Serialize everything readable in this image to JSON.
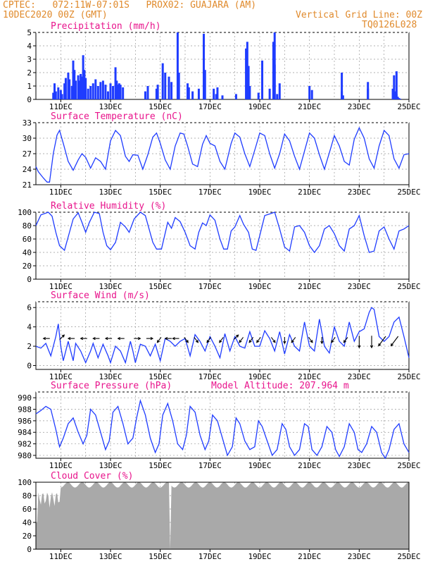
{
  "header": {
    "line1": "CPTEC:   072:11W-07:01S   PROX02: GUAJARA (AM)",
    "line2_left": "10DEC2020 00Z (GMT)",
    "line2_right": "Vertical Grid Line: 00Z",
    "line3_right": "TQ0126L028"
  },
  "x_tick_labels": [
    "11DEC",
    "13DEC",
    "15DEC",
    "17DEC",
    "19DEC",
    "21DEC",
    "23DEC",
    "25DEC"
  ],
  "colors": {
    "series": "#1f3cff",
    "title": "#e8148c",
    "header": "#e08a2c",
    "cloud": "#a9a9a9",
    "arrow": "#000000"
  },
  "panels": {
    "precip": {
      "title": "Precipitation (mm/h)",
      "yticks": [
        "5",
        "4",
        "3",
        "2",
        "1",
        "0"
      ]
    },
    "temp": {
      "title": "Surface Temperature (nC)",
      "yticks": [
        "33",
        "30",
        "27",
        "24",
        "21"
      ]
    },
    "rh": {
      "title": "Relative Humidity (%)",
      "yticks": [
        "100",
        "80",
        "60",
        "40",
        "20",
        "0"
      ]
    },
    "wind": {
      "title": "Surface Wind (m/s)",
      "yticks": [
        "6",
        "4",
        "2",
        "0"
      ]
    },
    "pres": {
      "title": "Surface Pressure (hPa)",
      "subtitle": "Model Altitude: 207.964 m",
      "yticks": [
        "990",
        "988",
        "986",
        "984",
        "982",
        "980"
      ]
    },
    "cloud": {
      "title": "Cloud Cover (%)",
      "yticks": [
        "100",
        "80",
        "60",
        "40",
        "20",
        "0"
      ]
    }
  },
  "chart_data": [
    {
      "type": "bar",
      "title": "Precipitation (mm/h)",
      "ylabel": "mm/h",
      "ylim": [
        0,
        5
      ],
      "x_unit": "days since 10DEC2020 00Z",
      "x": [
        0.7,
        0.75,
        0.8,
        0.9,
        1.0,
        1.05,
        1.15,
        1.2,
        1.3,
        1.35,
        1.45,
        1.5,
        1.55,
        1.6,
        1.7,
        1.75,
        1.8,
        1.85,
        1.9,
        1.95,
        2.0,
        2.1,
        2.2,
        2.3,
        2.4,
        2.5,
        2.6,
        2.7,
        2.8,
        2.9,
        3.0,
        3.1,
        3.2,
        3.25,
        3.3,
        3.35,
        3.4,
        3.5,
        4.4,
        4.5,
        4.85,
        4.9,
        5.1,
        5.2,
        5.35,
        5.45,
        5.7,
        5.75,
        6.1,
        6.15,
        6.3,
        6.55,
        6.75,
        6.8,
        7.15,
        7.25,
        7.3,
        7.5,
        8.05,
        8.6,
        8.95,
        9.1,
        9.4,
        9.6,
        9.7,
        11.0,
        11.1,
        12.3,
        12.35,
        13.35,
        14.35,
        14.45,
        14.5,
        14.55,
        14.6,
        14.65
      ],
      "values": [
        0.5,
        1.2,
        0.6,
        0.9,
        0.7,
        0.4,
        1.2,
        1.6,
        2.0,
        1.5,
        1.0,
        2.9,
        2.2,
        1.4,
        1.8,
        1.4,
        1.9,
        1.7,
        3.3,
        2.2,
        1.6,
        0.8,
        1.0,
        1.2,
        1.5,
        1.0,
        1.3,
        1.4,
        1.1,
        0.6,
        1.2,
        1.0,
        2.4,
        1.4,
        1.1,
        1.2,
        1.1,
        0.9,
        0.6,
        1.0,
        0.8,
        1.1,
        2.7,
        2.0,
        1.7,
        1.3,
        5.0,
        2.0,
        1.2,
        0.9,
        0.6,
        0.8,
        4.9,
        2.2,
        0.8,
        0.4,
        0.9,
        0.3,
        0.4,
        1.0,
        0.5,
        2.9,
        0.8,
        2.6,
        0.4,
        1.0,
        0.7,
        0.6,
        0.3,
        1.3,
        0.8,
        0.6,
        0.4,
        0.2,
        0.1,
        0.05
      ],
      "extra_x": [
        8.45,
        8.5,
        8.55,
        9.55,
        9.6,
        9.8,
        12.3,
        13.35,
        14.4,
        14.5
      ],
      "extra_values": [
        3.8,
        4.3,
        2.5,
        4.3,
        5.0,
        1.2,
        2.0,
        0.8,
        1.8,
        2.1
      ]
    },
    {
      "type": "line",
      "title": "Surface Temperature (nC)",
      "ylim": [
        21,
        33
      ],
      "x_unit": "days since 10DEC2020 00Z",
      "series": [
        {
          "x": [
            0,
            0.1,
            0.3,
            0.45,
            0.55,
            0.7,
            0.85,
            0.95,
            1.1,
            1.3,
            1.5,
            1.7,
            1.85,
            2.0,
            2.2,
            2.4,
            2.6,
            2.8,
            3.0,
            3.2,
            3.4,
            3.6,
            3.75,
            3.9,
            4.1,
            4.3,
            4.5,
            4.7,
            4.85,
            5.0,
            5.2,
            5.4,
            5.6,
            5.8,
            5.95,
            6.1,
            6.3,
            6.5,
            6.7,
            6.85,
            7.0,
            7.2,
            7.4,
            7.6,
            7.85,
            8.0,
            8.2,
            8.4,
            8.6,
            8.85,
            9.0,
            9.2,
            9.4,
            9.6,
            9.8,
            10.0,
            10.2,
            10.4,
            10.6,
            10.8,
            11.0,
            11.2,
            11.4,
            11.6,
            11.85,
            12.0,
            12.2,
            12.4,
            12.6,
            12.8,
            13.0,
            13.2,
            13.4,
            13.6,
            13.8,
            14.0,
            14.2,
            14.4,
            14.6,
            14.8,
            15.0
          ],
          "values": [
            24.5,
            23.5,
            22.3,
            21.5,
            21.5,
            27.0,
            30.6,
            31.5,
            29.0,
            25.5,
            23.8,
            25.8,
            27.0,
            26.3,
            24.2,
            26.2,
            25.5,
            24.0,
            29.5,
            31.5,
            30.5,
            26.5,
            25.5,
            26.8,
            26.7,
            24.0,
            26.8,
            30.2,
            31.0,
            29.0,
            25.8,
            24.0,
            28.5,
            31.0,
            30.8,
            28.5,
            25.0,
            24.5,
            28.8,
            30.5,
            29.0,
            28.5,
            25.5,
            24.0,
            29.0,
            31.0,
            30.2,
            27.0,
            24.5,
            28.5,
            31.0,
            30.5,
            27.0,
            24.2,
            27.0,
            30.8,
            29.5,
            26.5,
            24.0,
            27.5,
            31.0,
            30.0,
            26.8,
            24.0,
            28.0,
            30.5,
            28.5,
            25.5,
            24.8,
            29.8,
            32.0,
            30.0,
            26.0,
            24.2,
            28.5,
            31.5,
            30.5,
            26.0,
            24.2,
            26.8,
            27.0
          ]
        }
      ]
    },
    {
      "type": "line",
      "title": "Relative Humidity (%)",
      "ylim": [
        0,
        100
      ],
      "x_unit": "days since 10DEC2020 00Z",
      "series": [
        {
          "x": [
            0,
            0.2,
            0.5,
            0.65,
            0.8,
            0.95,
            1.15,
            1.35,
            1.5,
            1.7,
            1.85,
            2.0,
            2.15,
            2.35,
            2.55,
            2.7,
            2.85,
            3.0,
            3.2,
            3.4,
            3.6,
            3.75,
            3.95,
            4.2,
            4.4,
            4.55,
            4.7,
            4.85,
            5.05,
            5.3,
            5.45,
            5.6,
            5.8,
            6.0,
            6.2,
            6.4,
            6.55,
            6.7,
            6.85,
            7.0,
            7.2,
            7.4,
            7.55,
            7.7,
            7.85,
            8.0,
            8.2,
            8.35,
            8.55,
            8.7,
            8.85,
            9.0,
            9.2,
            9.45,
            9.6,
            9.8,
            10.0,
            10.2,
            10.4,
            10.6,
            10.8,
            11.0,
            11.2,
            11.4,
            11.6,
            11.8,
            12.0,
            12.2,
            12.4,
            12.6,
            12.8,
            13.0,
            13.2,
            13.4,
            13.6,
            13.8,
            14.0,
            14.2,
            14.4,
            14.6,
            14.8,
            15.0
          ],
          "values": [
            80,
            96,
            100,
            94,
            70,
            50,
            43,
            70,
            90,
            99,
            85,
            70,
            85,
            100,
            98,
            70,
            50,
            44,
            55,
            85,
            78,
            70,
            90,
            100,
            95,
            75,
            55,
            45,
            45,
            85,
            76,
            92,
            86,
            70,
            50,
            45,
            70,
            84,
            80,
            96,
            88,
            60,
            45,
            45,
            72,
            78,
            95,
            82,
            70,
            45,
            43,
            65,
            95,
            98,
            100,
            75,
            48,
            42,
            78,
            80,
            70,
            50,
            40,
            50,
            75,
            80,
            68,
            50,
            42,
            75,
            80,
            95,
            65,
            40,
            42,
            72,
            78,
            60,
            45,
            72,
            75,
            80
          ]
        }
      ]
    },
    {
      "type": "line",
      "title": "Surface Wind (m/s)",
      "ylim": [
        0,
        6
      ],
      "x_unit": "days since 10DEC2020 00Z",
      "series": [
        {
          "x": [
            0,
            0.2,
            0.4,
            0.6,
            0.8,
            0.9,
            1.0,
            1.1,
            1.3,
            1.5,
            1.6,
            1.8,
            2.0,
            2.2,
            2.3,
            2.5,
            2.7,
            2.9,
            3.0,
            3.2,
            3.4,
            3.6,
            3.8,
            3.9,
            4.0,
            4.2,
            4.4,
            4.6,
            4.8,
            5.0,
            5.2,
            5.4,
            5.6,
            5.8,
            6.0,
            6.2,
            6.4,
            6.6,
            6.8,
            7.0,
            7.2,
            7.4,
            7.6,
            7.8,
            8.0,
            8.2,
            8.4,
            8.6,
            8.8,
            9.0,
            9.2,
            9.4,
            9.6,
            9.8,
            10.0,
            10.2,
            10.4,
            10.6,
            10.8,
            11.0,
            11.2,
            11.4,
            11.6,
            11.8,
            12.0,
            12.2,
            12.4,
            12.6,
            12.8,
            13.0,
            13.2,
            13.4,
            13.5,
            13.6,
            13.8,
            14.0,
            14.2,
            14.4,
            14.6,
            14.8,
            15.0
          ],
          "values": [
            2.0,
            1.8,
            2.3,
            1.0,
            3.0,
            4.3,
            2.0,
            0.5,
            2.5,
            0.5,
            2.3,
            1.5,
            0.3,
            1.5,
            2.3,
            0.8,
            2.2,
            1.0,
            0.3,
            2.0,
            1.5,
            0.3,
            2.5,
            1.5,
            0.3,
            2.2,
            2.0,
            1.0,
            2.2,
            0.5,
            2.8,
            2.5,
            2.0,
            2.5,
            2.8,
            1.0,
            3.2,
            2.5,
            1.5,
            3.0,
            2.0,
            0.8,
            3.3,
            1.5,
            3.0,
            2.0,
            1.8,
            3.5,
            2.0,
            2.0,
            3.6,
            2.8,
            1.5,
            3.5,
            1.2,
            3.2,
            2.0,
            1.5,
            4.5,
            2.0,
            1.5,
            4.8,
            2.0,
            1.3,
            4.0,
            2.5,
            2.0,
            4.5,
            2.5,
            3.5,
            3.8,
            5.5,
            6.0,
            5.8,
            3.0,
            2.5,
            3.0,
            4.5,
            5.0,
            3.0,
            0.8
          ]
        }
      ],
      "wind_arrows": [
        {
          "x": 0.5,
          "dir": "left"
        },
        {
          "x": 1.0,
          "dir": "up-right"
        },
        {
          "x": 1.5,
          "dir": "left"
        },
        {
          "x": 2.0,
          "dir": "left"
        },
        {
          "x": 2.5,
          "dir": "left"
        },
        {
          "x": 3.0,
          "dir": "left"
        },
        {
          "x": 3.5,
          "dir": "left"
        },
        {
          "x": 4.0,
          "dir": "right"
        },
        {
          "x": 4.5,
          "dir": "right"
        },
        {
          "x": 5.0,
          "dir": "down-left"
        },
        {
          "x": 5.4,
          "dir": "left"
        },
        {
          "x": 5.7,
          "dir": "left"
        },
        {
          "x": 6.0,
          "dir": "down-right"
        },
        {
          "x": 6.4,
          "dir": "down-right"
        },
        {
          "x": 7.0,
          "dir": "down-left"
        },
        {
          "x": 7.5,
          "dir": "down-left"
        },
        {
          "x": 8.0,
          "dir": "up-right"
        },
        {
          "x": 8.3,
          "dir": "down-left"
        },
        {
          "x": 8.7,
          "dir": "down-left"
        },
        {
          "x": 9.0,
          "dir": "down-left"
        },
        {
          "x": 9.5,
          "dir": "down-right"
        },
        {
          "x": 10.0,
          "dir": "down"
        },
        {
          "x": 10.4,
          "dir": "down-left"
        },
        {
          "x": 11.0,
          "dir": "down-right"
        },
        {
          "x": 11.5,
          "dir": "down"
        },
        {
          "x": 12.0,
          "dir": "down-left"
        },
        {
          "x": 12.5,
          "dir": "down-left"
        },
        {
          "x": 13.0,
          "dir": "down"
        },
        {
          "x": 13.5,
          "dir": "down"
        },
        {
          "x": 14.0,
          "dir": "down-left"
        },
        {
          "x": 14.5,
          "dir": "down-left"
        }
      ]
    },
    {
      "type": "line",
      "title": "Surface Pressure (hPa)",
      "ylim": [
        979.5,
        991
      ],
      "x_unit": "days since 10DEC2020 00Z",
      "series": [
        {
          "x": [
            0,
            0.2,
            0.4,
            0.6,
            0.8,
            0.95,
            1.1,
            1.3,
            1.5,
            1.7,
            1.9,
            2.05,
            2.2,
            2.4,
            2.6,
            2.8,
            2.95,
            3.1,
            3.3,
            3.5,
            3.7,
            3.9,
            4.05,
            4.2,
            4.4,
            4.6,
            4.8,
            4.95,
            5.1,
            5.3,
            5.5,
            5.7,
            5.9,
            6.05,
            6.2,
            6.4,
            6.6,
            6.8,
            6.95,
            7.1,
            7.3,
            7.5,
            7.7,
            7.9,
            8.05,
            8.2,
            8.4,
            8.6,
            8.8,
            8.95,
            9.1,
            9.3,
            9.5,
            9.7,
            9.9,
            10.05,
            10.2,
            10.4,
            10.6,
            10.8,
            10.95,
            11.1,
            11.3,
            11.5,
            11.7,
            11.9,
            12.05,
            12.2,
            12.4,
            12.6,
            12.8,
            12.95,
            13.1,
            13.3,
            13.5,
            13.7,
            13.9,
            14.05,
            14.2,
            14.4,
            14.6,
            14.8,
            15.0
          ],
          "values": [
            987.2,
            987.8,
            988.5,
            988.0,
            984.5,
            981.5,
            983.0,
            985.5,
            986.5,
            984.0,
            982.0,
            983.5,
            988.0,
            987.0,
            984.0,
            981.0,
            982.5,
            987.5,
            988.5,
            985.5,
            982.0,
            983.0,
            986.5,
            989.5,
            987.0,
            983.0,
            980.5,
            982.0,
            987.0,
            989.0,
            986.0,
            982.0,
            981.0,
            983.5,
            988.5,
            987.5,
            983.5,
            981.0,
            982.5,
            987.0,
            986.0,
            983.0,
            980.0,
            981.5,
            986.5,
            985.5,
            982.5,
            981.0,
            981.5,
            986.0,
            985.0,
            982.5,
            980.0,
            981.0,
            985.5,
            984.5,
            981.5,
            980.0,
            981.0,
            985.5,
            985.0,
            981.0,
            980.0,
            981.5,
            985.0,
            984.0,
            981.0,
            979.8,
            981.5,
            985.5,
            984.0,
            981.0,
            980.5,
            982.0,
            985.0,
            984.0,
            980.5,
            979.5,
            981.0,
            984.5,
            985.5,
            982.0,
            980.5
          ]
        }
      ]
    },
    {
      "type": "bar",
      "title": "Cloud Cover (%)",
      "ylim": [
        0,
        100
      ],
      "x_unit": "days since 10DEC2020 00Z",
      "summary": "near 100% most of the period, lower (50-80%) before 11DEC, brief drop to 0 at ~15.4DEC"
    }
  ]
}
